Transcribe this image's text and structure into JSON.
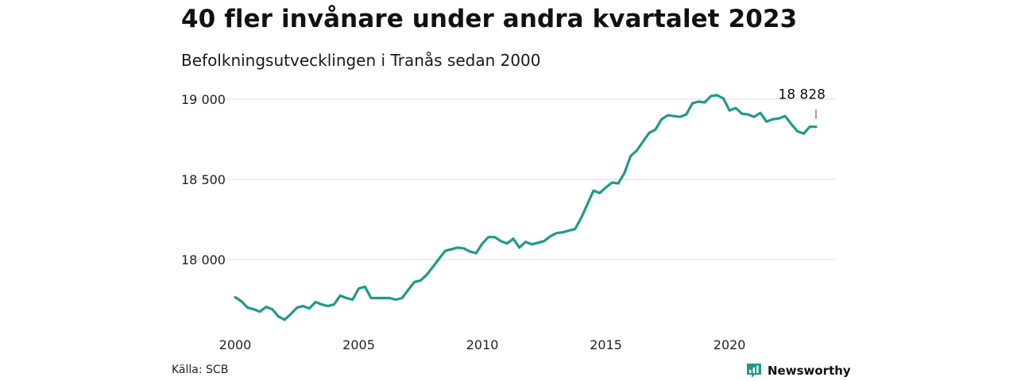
{
  "title": "40 fler invånare under andra kvartalet 2023",
  "subtitle": "Befolkningsutvecklingen i Tranås sedan 2000",
  "source": "Källa: SCB",
  "brand": {
    "name": "Newsworthy",
    "icon": "newsworthy-logo-icon"
  },
  "colors": {
    "line": "#1f9a8a",
    "grid": "#dddddd",
    "brand": "#1f9a8a"
  },
  "chart_data": {
    "type": "line",
    "title": "40 fler invånare under andra kvartalet 2023",
    "subtitle": "Befolkningsutvecklingen i Tranås sedan 2000",
    "xlabel": "",
    "ylabel": "",
    "xlim": [
      2000,
      2023.5
    ],
    "ylim": [
      17600,
      19100
    ],
    "x_ticks": [
      2000,
      2005,
      2010,
      2015,
      2020
    ],
    "x_tick_labels": [
      "2000",
      "2005",
      "2010",
      "2015",
      "2020"
    ],
    "y_ticks": [
      18000,
      18500,
      19000
    ],
    "y_tick_labels": [
      "18 000",
      "18 500",
      "19 000"
    ],
    "grid": true,
    "legend": "none",
    "annotation": {
      "x": 2023.5,
      "y": 18828,
      "text": "18 828"
    },
    "series": [
      {
        "x": [
          2000.0,
          2000.25,
          2000.5,
          2000.75,
          2001.0,
          2001.25,
          2001.5,
          2001.75,
          2002.0,
          2002.25,
          2002.5,
          2002.75,
          2003.0,
          2003.25,
          2003.5,
          2003.75,
          2004.0,
          2004.25,
          2004.5,
          2004.75,
          2005.0,
          2005.25,
          2005.5,
          2005.75,
          2006.0,
          2006.25,
          2006.5,
          2006.75,
          2007.0,
          2007.25,
          2007.5,
          2007.75,
          2008.0,
          2008.25,
          2008.5,
          2008.75,
          2009.0,
          2009.25,
          2009.5,
          2009.75,
          2010.0,
          2010.25,
          2010.5,
          2010.75,
          2011.0,
          2011.25,
          2011.5,
          2011.75,
          2012.0,
          2012.25,
          2012.5,
          2012.75,
          2013.0,
          2013.25,
          2013.5,
          2013.75,
          2014.0,
          2014.25,
          2014.5,
          2014.75,
          2015.0,
          2015.25,
          2015.5,
          2015.75,
          2016.0,
          2016.25,
          2016.5,
          2016.75,
          2017.0,
          2017.25,
          2017.5,
          2017.75,
          2018.0,
          2018.25,
          2018.5,
          2018.75,
          2019.0,
          2019.25,
          2019.5,
          2019.75,
          2020.0,
          2020.25,
          2020.5,
          2020.75,
          2021.0,
          2021.25,
          2021.5,
          2021.75,
          2022.0,
          2022.25,
          2022.5,
          2022.75,
          2023.0,
          2023.25,
          2023.5
        ],
        "values": [
          17765,
          17740,
          17700,
          17690,
          17675,
          17705,
          17690,
          17645,
          17625,
          17660,
          17700,
          17710,
          17695,
          17735,
          17720,
          17710,
          17720,
          17775,
          17760,
          17750,
          17820,
          17830,
          17760,
          17760,
          17760,
          17760,
          17750,
          17760,
          17810,
          17860,
          17870,
          17905,
          17955,
          18005,
          18055,
          18065,
          18075,
          18070,
          18050,
          18040,
          18100,
          18140,
          18140,
          18115,
          18100,
          18130,
          18075,
          18110,
          18095,
          18105,
          18115,
          18145,
          18165,
          18170,
          18180,
          18190,
          18260,
          18345,
          18430,
          18415,
          18450,
          18480,
          18475,
          18540,
          18645,
          18680,
          18735,
          18790,
          18810,
          18875,
          18900,
          18895,
          18890,
          18905,
          18975,
          18985,
          18980,
          19020,
          19025,
          19005,
          18930,
          18945,
          18910,
          18905,
          18890,
          18915,
          18860,
          18875,
          18880,
          18895,
          18845,
          18800,
          18785,
          18828,
          18828
        ]
      }
    ]
  }
}
